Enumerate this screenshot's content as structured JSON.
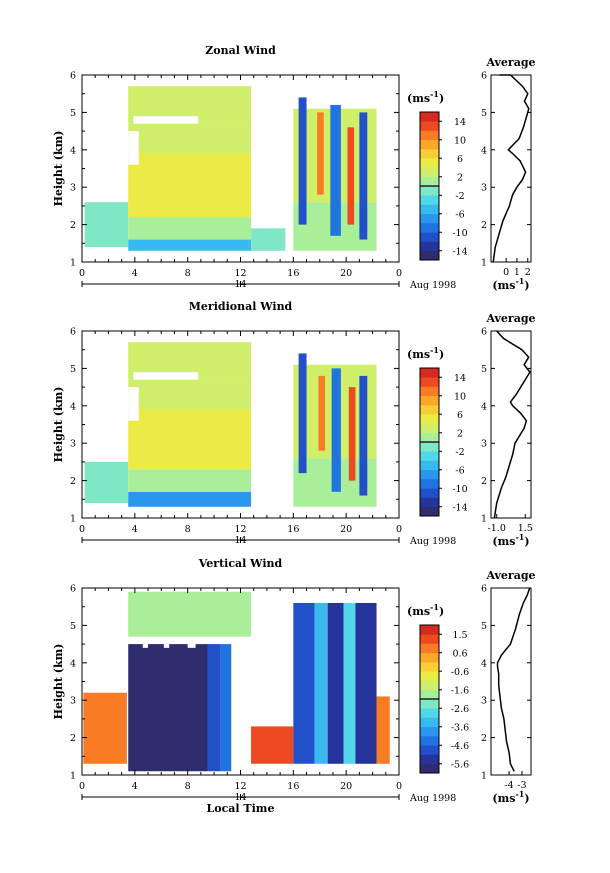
{
  "chart_data": [
    {
      "type": "heatmap",
      "title": "Zonal Wind",
      "ylabel": "Height (km)",
      "xlim": [
        0,
        24
      ],
      "ylim": [
        1,
        6
      ],
      "x_ticks": [
        "0",
        "4",
        "8",
        "12",
        "16",
        "20",
        "0"
      ],
      "y_ticks": [
        "1",
        "2",
        "3",
        "4",
        "5",
        "6"
      ],
      "date_marker": "14",
      "date_label": "Aug 1998",
      "colorbar": {
        "unit": "(ms",
        "unit_sup": "-1",
        "unit_close": ")",
        "ticks": [
          "14",
          "10",
          "6",
          "2",
          "-2",
          "-6",
          "-10",
          "-14"
        ],
        "range": [
          -16,
          16
        ]
      },
      "regions": [
        {
          "x0": 0.2,
          "x1": 3.5,
          "y0": 1.4,
          "y1": 2.6,
          "value": -1
        },
        {
          "x0": 3.5,
          "x1": 12.8,
          "y0": 1.3,
          "y1": 1.6,
          "value": -6
        },
        {
          "x0": 3.5,
          "x1": 12.8,
          "y0": 1.6,
          "y1": 2.2,
          "value": 0
        },
        {
          "x0": 3.5,
          "x1": 12.8,
          "y0": 2.2,
          "y1": 3.9,
          "value": 5
        },
        {
          "x0": 3.5,
          "x1": 12.8,
          "y0": 3.9,
          "y1": 4.7,
          "value": 3
        },
        {
          "x0": 3.5,
          "x1": 12.8,
          "y0": 4.7,
          "y1": 5.7,
          "value": 2
        },
        {
          "x0": 12.8,
          "x1": 15.4,
          "y0": 1.3,
          "y1": 1.9,
          "value": -1
        },
        {
          "x0": 16.0,
          "x1": 22.3,
          "y0": 1.3,
          "y1": 2.6,
          "value": 1
        },
        {
          "x0": 16.0,
          "x1": 22.3,
          "y0": 2.6,
          "y1": 5.1,
          "value": 2
        },
        {
          "x0": 16.4,
          "x1": 17.0,
          "y0": 2.0,
          "y1": 5.4,
          "value": -12
        },
        {
          "x0": 17.8,
          "x1": 18.3,
          "y0": 2.8,
          "y1": 5.0,
          "value": 10
        },
        {
          "x0": 18.8,
          "x1": 19.6,
          "y0": 1.7,
          "y1": 5.2,
          "value": -10
        },
        {
          "x0": 20.1,
          "x1": 20.6,
          "y0": 2.0,
          "y1": 4.6,
          "value": 12
        },
        {
          "x0": 21.0,
          "x1": 21.6,
          "y0": 1.6,
          "y1": 5.0,
          "value": -12
        }
      ],
      "voids": [
        {
          "x0": 3.9,
          "x1": 8.8,
          "y0": 4.7,
          "y1": 4.9
        },
        {
          "x0": 3.5,
          "x1": 4.3,
          "y0": 3.6,
          "y1": 4.5
        }
      ],
      "average": {
        "xticks": [
          "0",
          "1",
          "2"
        ],
        "xlim": [
          -1.4,
          2.3
        ],
        "x": [
          -1.2,
          -1.0,
          -0.6,
          -0.3,
          0.0,
          0.3,
          0.6,
          1.0,
          1.5,
          1.8,
          1.3,
          0.6,
          0.2,
          1.2,
          1.6,
          1.9,
          2.1,
          1.7,
          2.0,
          1.5,
          0.4,
          -0.6
        ],
        "y": [
          1.0,
          1.4,
          1.8,
          2.1,
          2.3,
          2.5,
          2.8,
          3.0,
          3.2,
          3.4,
          3.7,
          3.9,
          4.0,
          4.3,
          4.6,
          4.9,
          5.1,
          5.3,
          5.5,
          5.7,
          6.0,
          6.3
        ]
      }
    },
    {
      "type": "heatmap",
      "title": "Meridional Wind",
      "ylabel": "Height (km)",
      "xlim": [
        0,
        24
      ],
      "ylim": [
        1,
        6
      ],
      "x_ticks": [
        "0",
        "4",
        "8",
        "12",
        "16",
        "20",
        "0"
      ],
      "y_ticks": [
        "1",
        "2",
        "3",
        "4",
        "5",
        "6"
      ],
      "date_marker": "14",
      "date_label": "Aug 1998",
      "colorbar": {
        "unit": "(ms",
        "unit_sup": "-1",
        "unit_close": ")",
        "ticks": [
          "14",
          "10",
          "6",
          "2",
          "-2",
          "-6",
          "-10",
          "-14"
        ],
        "range": [
          -16,
          16
        ]
      },
      "regions": [
        {
          "x0": 0.2,
          "x1": 3.5,
          "y0": 1.4,
          "y1": 2.5,
          "value": -1
        },
        {
          "x0": 3.5,
          "x1": 12.8,
          "y0": 1.3,
          "y1": 1.7,
          "value": -7
        },
        {
          "x0": 3.5,
          "x1": 12.8,
          "y0": 1.7,
          "y1": 2.3,
          "value": 0
        },
        {
          "x0": 3.5,
          "x1": 12.8,
          "y0": 2.3,
          "y1": 3.9,
          "value": 5
        },
        {
          "x0": 3.5,
          "x1": 12.8,
          "y0": 3.9,
          "y1": 4.7,
          "value": 3
        },
        {
          "x0": 3.5,
          "x1": 12.8,
          "y0": 4.7,
          "y1": 5.7,
          "value": 2
        },
        {
          "x0": 16.0,
          "x1": 22.3,
          "y0": 1.3,
          "y1": 2.6,
          "value": 1
        },
        {
          "x0": 16.0,
          "x1": 22.3,
          "y0": 2.6,
          "y1": 5.1,
          "value": 3
        },
        {
          "x0": 16.4,
          "x1": 17.0,
          "y0": 2.2,
          "y1": 5.4,
          "value": -11
        },
        {
          "x0": 17.9,
          "x1": 18.4,
          "y0": 2.8,
          "y1": 4.8,
          "value": 11
        },
        {
          "x0": 18.9,
          "x1": 19.6,
          "y0": 1.7,
          "y1": 5.0,
          "value": -10
        },
        {
          "x0": 20.2,
          "x1": 20.7,
          "y0": 2.0,
          "y1": 4.5,
          "value": 12
        },
        {
          "x0": 21.0,
          "x1": 21.6,
          "y0": 1.6,
          "y1": 4.8,
          "value": -12
        }
      ],
      "voids": [
        {
          "x0": 3.9,
          "x1": 8.8,
          "y0": 4.7,
          "y1": 4.9
        },
        {
          "x0": 3.5,
          "x1": 4.3,
          "y0": 3.6,
          "y1": 4.5
        }
      ],
      "average": {
        "xticks": [
          "-1.0",
          "1.5"
        ],
        "xlim": [
          -1.5,
          2.0
        ],
        "x": [
          -1.2,
          -1.0,
          -0.6,
          -0.2,
          0.1,
          0.4,
          0.6,
          1.0,
          1.4,
          1.6,
          1.1,
          0.4,
          0.2,
          0.7,
          1.1,
          1.5,
          1.9,
          1.4,
          1.8,
          1.2,
          -0.4,
          -1.0
        ],
        "y": [
          1.0,
          1.4,
          1.8,
          2.1,
          2.4,
          2.7,
          3.0,
          3.2,
          3.4,
          3.6,
          3.8,
          4.0,
          4.1,
          4.3,
          4.5,
          4.7,
          4.9,
          5.1,
          5.3,
          5.5,
          5.8,
          6.1
        ]
      }
    },
    {
      "type": "heatmap",
      "title": "Vertical Wind",
      "ylabel": "Height (km)",
      "xlabel": "Local Time",
      "xlim": [
        0,
        24
      ],
      "ylim": [
        1,
        6
      ],
      "x_ticks": [
        "0",
        "4",
        "8",
        "12",
        "16",
        "20",
        "0"
      ],
      "y_ticks": [
        "1",
        "2",
        "3",
        "4",
        "5",
        "6"
      ],
      "date_marker": "14",
      "date_label": "Aug 1998",
      "colorbar": {
        "unit": "(ms",
        "unit_sup": "-1",
        "unit_close": ")",
        "ticks": [
          "1.5",
          "0.6",
          "-0.6",
          "-1.6",
          "-2.6",
          "-3.6",
          "-4.6",
          "-5.6"
        ],
        "range": [
          -6.1,
          2.0
        ]
      },
      "regions": [
        {
          "x0": 0.1,
          "x1": 3.4,
          "y0": 1.3,
          "y1": 3.2,
          "value": 0.8
        },
        {
          "x0": 3.5,
          "x1": 12.8,
          "y0": 4.7,
          "y1": 5.9,
          "value": -1.6
        },
        {
          "x0": 3.5,
          "x1": 9.5,
          "y0": 1.1,
          "y1": 4.5,
          "value": -5.8
        },
        {
          "x0": 9.5,
          "x1": 10.5,
          "y0": 1.1,
          "y1": 4.5,
          "value": -5.0
        },
        {
          "x0": 10.5,
          "x1": 11.3,
          "y0": 1.1,
          "y1": 4.5,
          "value": -4.2
        },
        {
          "x0": 12.8,
          "x1": 16.0,
          "y0": 1.3,
          "y1": 2.3,
          "value": 1.0
        },
        {
          "x0": 22.3,
          "x1": 23.3,
          "y0": 1.3,
          "y1": 3.1,
          "value": 0.9
        },
        {
          "x0": 16.0,
          "x1": 17.6,
          "y0": 1.3,
          "y1": 5.6,
          "value": -4.8
        },
        {
          "x0": 17.6,
          "x1": 18.6,
          "y0": 1.3,
          "y1": 5.6,
          "value": -3.2
        },
        {
          "x0": 18.6,
          "x1": 19.8,
          "y0": 1.3,
          "y1": 5.6,
          "value": -5.2
        },
        {
          "x0": 19.8,
          "x1": 20.7,
          "y0": 1.3,
          "y1": 5.6,
          "value": -2.6
        },
        {
          "x0": 20.7,
          "x1": 22.3,
          "y0": 1.3,
          "y1": 5.6,
          "value": -5.4
        }
      ],
      "voids": [
        {
          "x0": 4.6,
          "x1": 5.0,
          "y0": 4.4,
          "y1": 4.6
        },
        {
          "x0": 6.2,
          "x1": 6.6,
          "y0": 4.4,
          "y1": 4.6
        },
        {
          "x0": 8.0,
          "x1": 8.6,
          "y0": 4.4,
          "y1": 4.6
        }
      ],
      "average": {
        "xticks": [
          "-4",
          "-3"
        ],
        "xlim": [
          -5.4,
          -2.3
        ],
        "x": [
          -3.6,
          -3.9,
          -4.0,
          -4.2,
          -4.3,
          -4.4,
          -4.6,
          -4.7,
          -4.8,
          -4.8,
          -4.9,
          -4.9,
          -4.6,
          -3.9,
          -3.5,
          -3.2,
          -2.9,
          -2.6,
          -2.4
        ],
        "y": [
          1.1,
          1.3,
          1.6,
          1.9,
          2.2,
          2.5,
          2.8,
          3.1,
          3.4,
          3.7,
          3.9,
          4.0,
          4.2,
          4.5,
          4.9,
          5.3,
          5.6,
          5.8,
          6.0
        ]
      }
    }
  ]
}
